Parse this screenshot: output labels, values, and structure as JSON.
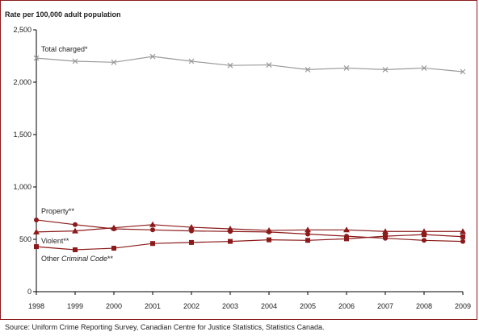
{
  "chart_data": {
    "type": "line",
    "ylabel": "Rate per 100,000 adult population",
    "xlabel": "",
    "x": [
      "1998",
      "1999",
      "2000",
      "2001",
      "2002",
      "2003",
      "2004",
      "2005",
      "2006",
      "2007",
      "2008",
      "2009"
    ],
    "ylim": [
      0,
      2500
    ],
    "yticks": [
      0,
      500,
      1000,
      1500,
      2000,
      2500
    ],
    "ytick_labels": [
      "0",
      "500",
      "1,000",
      "1,500",
      "2,000",
      "2,500"
    ],
    "grid": false,
    "series": [
      {
        "name": "Total charged*",
        "label_parts": [
          "Total charged*"
        ],
        "marker": "x",
        "color": "#9a9a9a",
        "values": [
          2230,
          2200,
          2190,
          2245,
          2200,
          2160,
          2165,
          2120,
          2135,
          2120,
          2135,
          2100
        ]
      },
      {
        "name": "Property**",
        "label_parts": [
          "Property**"
        ],
        "marker": "circle",
        "color": "#8b1a1a",
        "values": [
          685,
          640,
          600,
          590,
          580,
          575,
          570,
          550,
          530,
          510,
          490,
          480
        ]
      },
      {
        "name": "Violent**",
        "label_parts": [
          "Violent**"
        ],
        "marker": "triangle",
        "color": "#8b1a1a",
        "values": [
          570,
          580,
          610,
          640,
          615,
          600,
          585,
          590,
          590,
          575,
          575,
          575
        ]
      },
      {
        "name": "Other Criminal Code**",
        "label_parts": [
          "Other ",
          "Criminal Code",
          "**"
        ],
        "marker": "square",
        "color": "#8b1a1a",
        "values": [
          430,
          400,
          415,
          460,
          470,
          480,
          495,
          490,
          505,
          530,
          545,
          525
        ]
      }
    ]
  },
  "source": "Source:  Uniform Crime Reporting Survey, Canadian Centre for Justice Statistics, Statistics Canada."
}
